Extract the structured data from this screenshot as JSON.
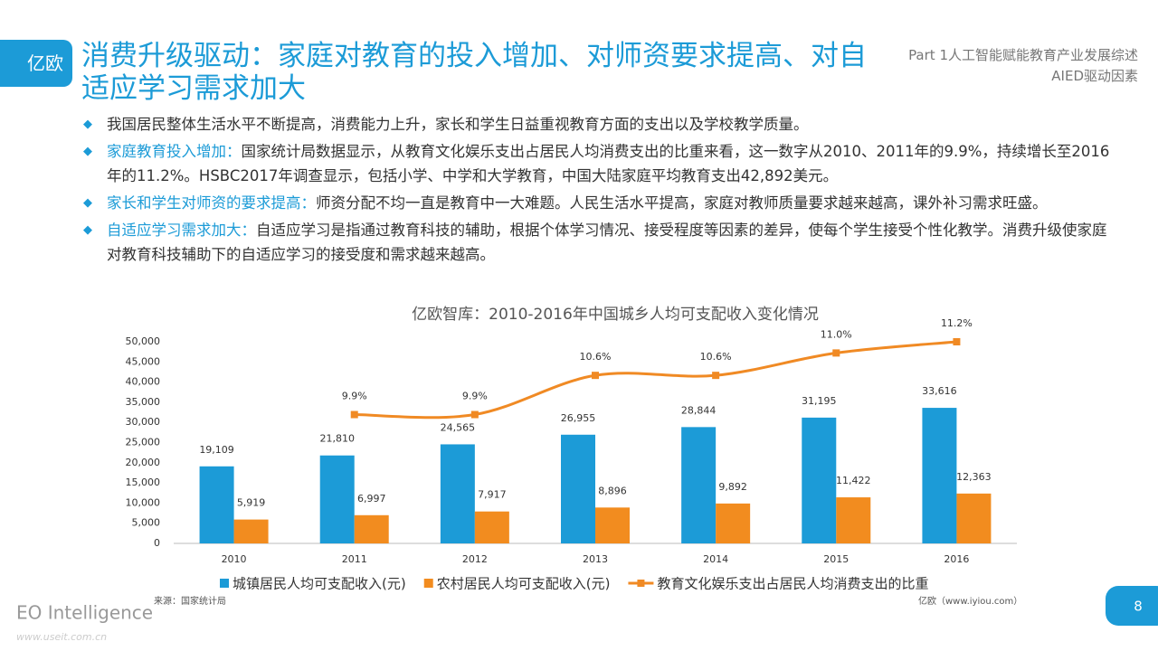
{
  "header": {
    "logo": "亿欧",
    "title": "消费升级驱动：家庭对教育的投入增加、对师资要求提高、对自适应学习需求加大",
    "part": "Part 1人工智能赋能教育产业发展综述",
    "section": "AIED驱动因素"
  },
  "bullets": [
    {
      "text": "我国居民整体生活水平不断提高，消费能力上升，家长和学生日益重视教育方面的支出以及学校教学质量。"
    },
    {
      "lead": "家庭教育投入增加：",
      "text": "国家统计局数据显示，从教育文化娱乐支出占居民人均消费支出的比重来看，这一数字从2010、2011年的9.9%，持续增长至2016年的11.2%。HSBC2017年调查显示，包括小学、中学和大学教育，中国大陆家庭平均教育支出42,892美元。"
    },
    {
      "lead": "家长和学生对师资的要求提高：",
      "text": "师资分配不均一直是教育中一大难题。人民生活水平提高，家庭对教师质量要求越来越高，课外补习需求旺盛。"
    },
    {
      "lead": "自适应学习需求加大：",
      "text": "自适应学习是指通过教育科技的辅助，根据个体学习情况、接受程度等因素的差异，使每个学生接受个性化教学。消费升级使家庭对教育科技辅助下的自适应学习的接受度和需求越来越高。"
    }
  ],
  "chart_data": {
    "type": "bar-line",
    "title": "亿欧智库：2010-2016年中国城乡人均可支配收入变化情况",
    "categories": [
      "2010",
      "2011",
      "2012",
      "2013",
      "2014",
      "2015",
      "2016"
    ],
    "ylim": [
      0,
      50000
    ],
    "yticks": [
      0,
      {
        "value": 5000,
        "label": "5,000"
      },
      {
        "value": 10000,
        "label": "10,000"
      },
      {
        "value": 15000,
        "label": "15,000"
      },
      {
        "value": 20000,
        "label": "20,000"
      },
      {
        "value": 25000,
        "label": "25,000"
      },
      {
        "value": 30000,
        "label": "30,000"
      },
      {
        "value": 35000,
        "label": "35,000"
      },
      {
        "value": 40000,
        "label": "40,000"
      },
      {
        "value": 45000,
        "label": "45,000"
      },
      {
        "value": 50000,
        "label": "50,000"
      }
    ],
    "y2lim": [
      7.6,
      11.2
    ],
    "series": [
      {
        "name": "城镇居民人均可支配收入(元)",
        "type": "bar",
        "color": "#1c9bd7",
        "values": [
          19109,
          21810,
          24565,
          26955,
          28844,
          31195,
          33616
        ],
        "value_labels": [
          "19,109",
          "21,810",
          "24,565",
          "26,955",
          "28,844",
          "31,195",
          "33,616"
        ]
      },
      {
        "name": "农村居民人均可支配收入(元)",
        "type": "bar",
        "color": "#f28c1f",
        "values": [
          5919,
          6997,
          7917,
          8896,
          9892,
          11422,
          12363
        ],
        "value_labels": [
          "5,919",
          "6,997",
          "7,917",
          "8,896",
          "9,892",
          "11,422",
          "12,363"
        ]
      },
      {
        "name": "教育文化娱乐支出占居民人均消费支出的比重",
        "type": "line",
        "axis": "y2",
        "color": "#f08a24",
        "values": [
          null,
          9.9,
          9.9,
          10.6,
          10.6,
          11.0,
          11.2
        ],
        "value_labels": [
          null,
          "9.9%",
          "9.9%",
          "10.6%",
          "10.6%",
          "11.0%",
          "11.2%"
        ]
      }
    ]
  },
  "footer": {
    "source": "来源：国家统计局",
    "site": "亿欧（www.iyiou.com）",
    "brand": "EO Intelligence",
    "watermark": "www.useit.com.cn",
    "page": "8"
  }
}
